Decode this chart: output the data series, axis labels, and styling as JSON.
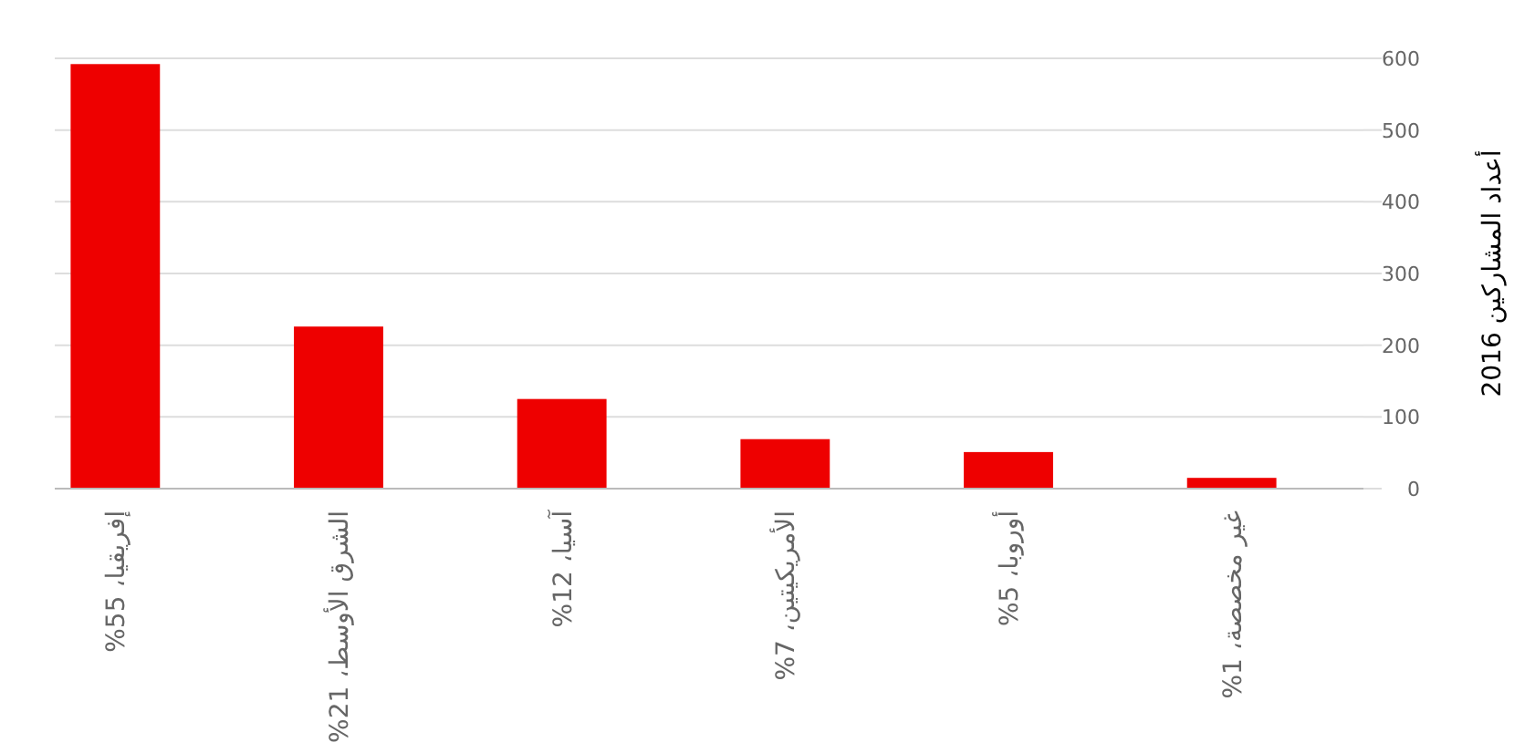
{
  "chart_data": {
    "type": "bar",
    "ylabel": "أعداد المشاركين 2016",
    "categories": [
      "إفريقيا، 55%",
      "الشرق الأوسط، 21%",
      "آسيا، 12%",
      "الأمريكيتين، 7%",
      "أوروبا، 5%",
      "غير مخصصة، 1%"
    ],
    "values": [
      592,
      226,
      125,
      69,
      51,
      15
    ],
    "color": "#ee0000",
    "ylim": [
      0,
      600
    ],
    "yticks": [
      0,
      100,
      200,
      300,
      400,
      500,
      600
    ],
    "grid": "y"
  }
}
